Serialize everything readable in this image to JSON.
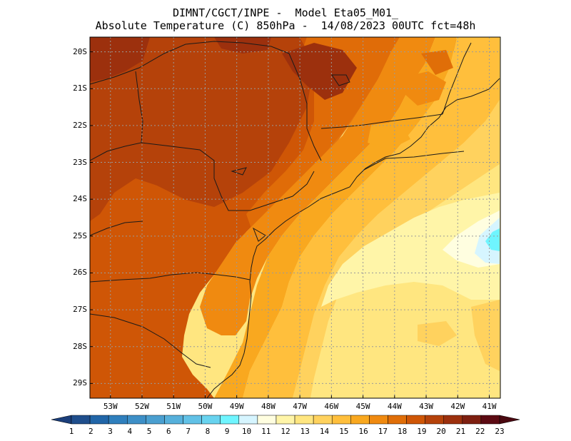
{
  "title": {
    "line1": "DIMNT/CGCT/INPE -  Model Eta05_M01_",
    "line2": "Absolute Temperature (C) 850hPa -  14/08/2023 00UTC fct=48h"
  },
  "map": {
    "lat_labels": [
      "20S",
      "21S",
      "22S",
      "23S",
      "24S",
      "25S",
      "26S",
      "27S",
      "28S",
      "29S"
    ],
    "lon_labels": [
      "53W",
      "52W",
      "51W",
      "50W",
      "49W",
      "48W",
      "47W",
      "46W",
      "45W",
      "44W",
      "43W",
      "42W",
      "41W"
    ],
    "lat_values": [
      -20,
      -21,
      -22,
      -23,
      -24,
      -25,
      -26,
      -27,
      -28,
      -29
    ],
    "lon_values": [
      -53,
      -52,
      -51,
      -50,
      -49,
      -48,
      -47,
      -46,
      -45,
      -44,
      -43,
      -42,
      -41
    ],
    "gridlines": true
  },
  "colorbar": {
    "labels": [
      "1",
      "2",
      "3",
      "4",
      "5",
      "6",
      "7",
      "8",
      "9",
      "10",
      "11",
      "12",
      "13",
      "14",
      "15",
      "16",
      "17",
      "18",
      "19",
      "20",
      "21",
      "22",
      "23"
    ],
    "colors": [
      "#1f4e8c",
      "#2166a8",
      "#2f7fbd",
      "#3d8fc7",
      "#4a9fd0",
      "#56b0db",
      "#61c1e6",
      "#68d3ef",
      "#6ff5ff",
      "#d6f5ff",
      "#fffee0",
      "#fff5a8",
      "#ffe680",
      "#ffd25e",
      "#ffbf3c",
      "#f9a81f",
      "#f08a10",
      "#e06e08",
      "#cf5606",
      "#b5420a",
      "#9c300d",
      "#7e1f10",
      "#5c0a12"
    ],
    "arrow_left_color": "#1b3e7a",
    "arrow_right_color": "#4a0810"
  }
}
